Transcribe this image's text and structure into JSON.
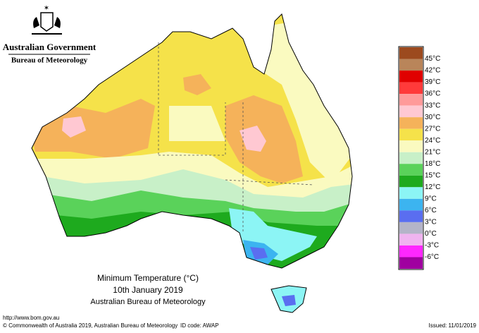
{
  "header": {
    "government": "Australian Government",
    "agency": "Bureau of Meteorology"
  },
  "map": {
    "title": "Minimum Temperature (°C)",
    "date": "10th January 2019",
    "source": "Australian Bureau of Meteorology"
  },
  "legend": {
    "colors": [
      "#9c4a1e",
      "#b9855a",
      "#e00000",
      "#ff3a3a",
      "#ff9a9a",
      "#ffc8d2",
      "#f5b25a",
      "#f5e24a",
      "#fafac0",
      "#c8f0c8",
      "#5ad25a",
      "#1eaa1e",
      "#8cf5f5",
      "#3cb4f0",
      "#5a6ef0",
      "#b4b4c8",
      "#f0b4f0",
      "#ff28ff",
      "#a000a0"
    ],
    "labels": [
      "45°C",
      "42°C",
      "39°C",
      "36°C",
      "33°C",
      "30°C",
      "27°C",
      "24°C",
      "21°C",
      "18°C",
      "15°C",
      "12°C",
      "9°C",
      "6°C",
      "3°C",
      "0°C",
      "-3°C",
      "-6°C"
    ]
  },
  "footer": {
    "url": "http://www.bom.gov.au",
    "copyright": "© Commonwealth of Australia 2019, Australian Bureau of Meteorology",
    "id_code": "ID code: AWAP",
    "issued": "Issued: 11/01/2019"
  }
}
